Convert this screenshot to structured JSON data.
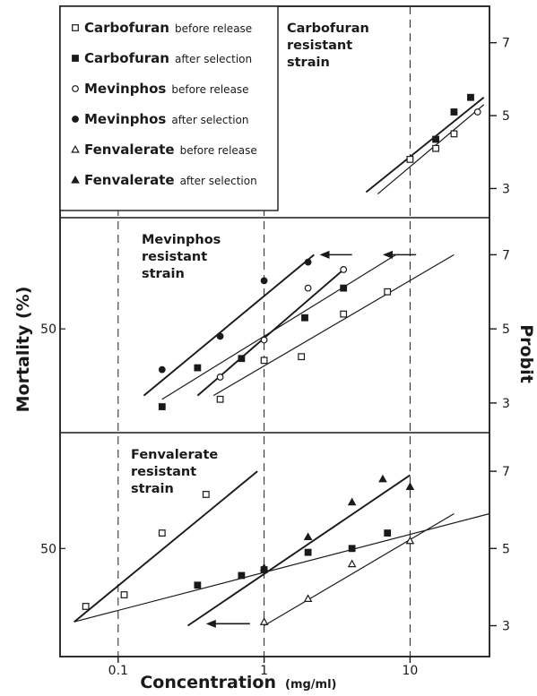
{
  "chart_data": {
    "type": "scatter",
    "xlabel": "Concentration",
    "xunit": "(mg/ml)",
    "ylabel_left": "Mortality (%)",
    "ylabel_right": "Probit",
    "x_scale": "log",
    "x_ticks": [
      {
        "value": 0.1,
        "label": "0.1"
      },
      {
        "value": 1,
        "label": "1"
      },
      {
        "value": 10,
        "label": "10"
      }
    ],
    "probit_ticks": [
      {
        "value": 3,
        "label": "3"
      },
      {
        "value": 5,
        "label": "5"
      },
      {
        "value": 7,
        "label": "7"
      }
    ],
    "xlim": [
      0.04,
      35
    ],
    "ylim_probit": [
      2.2,
      8.0
    ],
    "legend": {
      "placement": "top-left",
      "entries": [
        {
          "name": "Carbofuran",
          "suffix": "before release",
          "marker": "open-square"
        },
        {
          "name": "Carbofuran",
          "suffix": "after selection",
          "marker": "filled-square"
        },
        {
          "name": "Mevinphos",
          "suffix": "before release",
          "marker": "open-circle"
        },
        {
          "name": "Mevinphos",
          "suffix": "after selection",
          "marker": "filled-circle"
        },
        {
          "name": "Fenvalerate",
          "suffix": "before release",
          "marker": "open-triangle"
        },
        {
          "name": "Fenvalerate",
          "suffix": "after selection",
          "marker": "filled-triangle"
        }
      ]
    },
    "panels": [
      {
        "title": [
          "Carbofuran",
          "resistant",
          "strain"
        ],
        "mortality_label": "",
        "lines": [
          {
            "x": [
              5,
              32
            ],
            "y": [
              2.9,
              5.5
            ]
          },
          {
            "x": [
              6,
              32
            ],
            "y": [
              2.85,
              5.3
            ]
          }
        ],
        "points": [
          {
            "marker": "open-square",
            "x": 10,
            "y": 3.8
          },
          {
            "marker": "open-square",
            "x": 15,
            "y": 4.1
          },
          {
            "marker": "open-square",
            "x": 20,
            "y": 4.5
          },
          {
            "marker": "filled-square",
            "x": 15,
            "y": 4.35
          },
          {
            "marker": "filled-square",
            "x": 20,
            "y": 5.1
          },
          {
            "marker": "filled-square",
            "x": 26,
            "y": 5.5
          },
          {
            "marker": "open-circle",
            "x": 29,
            "y": 5.1
          }
        ],
        "arrows": []
      },
      {
        "title": [
          "Mevinphos",
          "resistant",
          "strain"
        ],
        "mortality_label": "50",
        "lines": [
          {
            "x": [
              0.15,
              2.2
            ],
            "y": [
              3.2,
              7.0
            ]
          },
          {
            "x": [
              0.2,
              8
            ],
            "y": [
              3.1,
              7.0
            ]
          },
          {
            "x": [
              0.35,
              3.5
            ],
            "y": [
              3.2,
              6.6
            ]
          },
          {
            "x": [
              0.45,
              20
            ],
            "y": [
              3.2,
              7.0
            ]
          }
        ],
        "points": [
          {
            "marker": "filled-circle",
            "x": 0.2,
            "y": 3.9
          },
          {
            "marker": "filled-circle",
            "x": 0.5,
            "y": 4.8
          },
          {
            "marker": "filled-circle",
            "x": 1.0,
            "y": 6.3
          },
          {
            "marker": "filled-circle",
            "x": 2.0,
            "y": 6.8
          },
          {
            "marker": "open-circle",
            "x": 0.5,
            "y": 3.7
          },
          {
            "marker": "open-circle",
            "x": 1.0,
            "y": 4.7
          },
          {
            "marker": "open-circle",
            "x": 2.0,
            "y": 6.1
          },
          {
            "marker": "open-circle",
            "x": 3.5,
            "y": 6.6
          },
          {
            "marker": "filled-square",
            "x": 0.2,
            "y": 2.9
          },
          {
            "marker": "filled-square",
            "x": 0.35,
            "y": 3.95
          },
          {
            "marker": "filled-square",
            "x": 0.7,
            "y": 4.2
          },
          {
            "marker": "filled-square",
            "x": 1.9,
            "y": 5.3
          },
          {
            "marker": "filled-square",
            "x": 3.5,
            "y": 6.1
          },
          {
            "marker": "open-square",
            "x": 0.5,
            "y": 3.1
          },
          {
            "marker": "open-square",
            "x": 1.0,
            "y": 4.15
          },
          {
            "marker": "open-square",
            "x": 1.8,
            "y": 4.25
          },
          {
            "marker": "open-square",
            "x": 3.5,
            "y": 5.4
          },
          {
            "marker": "open-square",
            "x": 7,
            "y": 6.0
          }
        ],
        "arrows": [
          {
            "x_from": 4.0,
            "x_to": 2.4,
            "y": 7.0
          },
          {
            "x_from": 11.0,
            "x_to": 6.5,
            "y": 7.0
          }
        ]
      },
      {
        "title": [
          "Fenvalerate",
          "resistant",
          "strain"
        ],
        "mortality_label": "50",
        "lines": [
          {
            "x": [
              0.05,
              0.9
            ],
            "y": [
              3.1,
              7.0
            ]
          },
          {
            "x": [
              0.05,
              35
            ],
            "y": [
              3.1,
              5.9
            ]
          },
          {
            "x": [
              0.3,
              10
            ],
            "y": [
              3.0,
              6.9
            ]
          },
          {
            "x": [
              1.0,
              20
            ],
            "y": [
              3.0,
              5.9
            ]
          }
        ],
        "points": [
          {
            "marker": "open-square",
            "x": 0.06,
            "y": 3.5
          },
          {
            "marker": "open-square",
            "x": 0.11,
            "y": 3.8
          },
          {
            "marker": "open-square",
            "x": 0.2,
            "y": 5.4
          },
          {
            "marker": "open-square",
            "x": 0.4,
            "y": 6.4
          },
          {
            "marker": "filled-square",
            "x": 0.35,
            "y": 4.05
          },
          {
            "marker": "filled-square",
            "x": 0.7,
            "y": 4.3
          },
          {
            "marker": "filled-square",
            "x": 1.0,
            "y": 4.45
          },
          {
            "marker": "filled-square",
            "x": 2.0,
            "y": 4.9
          },
          {
            "marker": "filled-square",
            "x": 4.0,
            "y": 5.0
          },
          {
            "marker": "filled-square",
            "x": 7.0,
            "y": 5.4
          },
          {
            "marker": "filled-triangle",
            "x": 1.0,
            "y": 4.5
          },
          {
            "marker": "filled-triangle",
            "x": 2.0,
            "y": 5.3
          },
          {
            "marker": "filled-triangle",
            "x": 4.0,
            "y": 6.2
          },
          {
            "marker": "filled-triangle",
            "x": 6.5,
            "y": 6.8
          },
          {
            "marker": "filled-triangle",
            "x": 10.0,
            "y": 6.6
          },
          {
            "marker": "open-triangle",
            "x": 1.0,
            "y": 3.1
          },
          {
            "marker": "open-triangle",
            "x": 2.0,
            "y": 3.7
          },
          {
            "marker": "open-triangle",
            "x": 4.0,
            "y": 4.6
          },
          {
            "marker": "open-triangle",
            "x": 10.0,
            "y": 5.2
          }
        ],
        "arrows": [
          {
            "x_from": 0.8,
            "x_to": 0.4,
            "y": 3.05
          }
        ]
      }
    ]
  }
}
